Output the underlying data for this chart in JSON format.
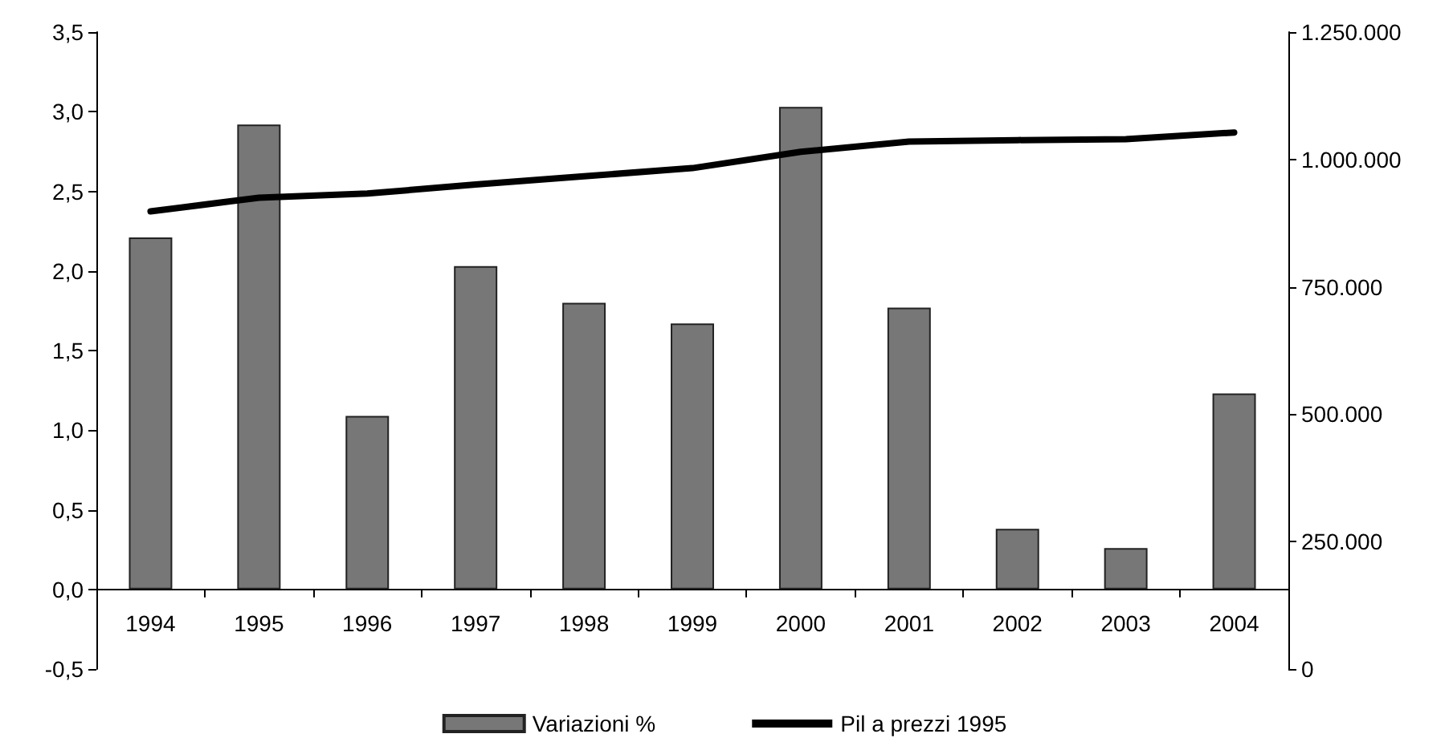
{
  "chart_data": {
    "type": "bar",
    "categories": [
      "1994",
      "1995",
      "1996",
      "1997",
      "1998",
      "1999",
      "2000",
      "2001",
      "2002",
      "2003",
      "2004"
    ],
    "series": [
      {
        "name": "Variazioni %",
        "color": "#777777",
        "values": [
          2.21,
          2.92,
          1.09,
          2.03,
          1.8,
          1.67,
          3.03,
          1.77,
          0.38,
          0.26,
          1.23
        ]
      },
      {
        "name": "Pil a prezzi 1995",
        "type": "line",
        "axis": "y2",
        "color": "#000000",
        "values": [
          898000,
          925000,
          933000,
          951000,
          967000,
          983000,
          1015000,
          1035000,
          1038000,
          1040000,
          1053000
        ]
      }
    ],
    "ylim": [
      -0.5,
      3.5
    ],
    "yticks": [
      {
        "value": -0.5,
        "label": "-0,5"
      },
      {
        "value": 0,
        "label": "0,0"
      },
      {
        "value": 0.5,
        "label": "0,5"
      },
      {
        "value": 1,
        "label": "1,0"
      },
      {
        "value": 1.5,
        "label": "1,5"
      },
      {
        "value": 2,
        "label": "2,0"
      },
      {
        "value": 2.5,
        "label": "2,5"
      },
      {
        "value": 3,
        "label": "3,0"
      },
      {
        "value": 3.5,
        "label": "3,5"
      }
    ],
    "y2lim": [
      0,
      1250000
    ],
    "y2ticks": [
      0,
      {
        "value": 250000,
        "label": "250.000"
      },
      {
        "value": 500000,
        "label": "500.000"
      },
      {
        "value": 750000,
        "label": "750.000"
      },
      {
        "value": 1000000,
        "label": "1.000.000"
      },
      {
        "value": 1250000,
        "label": "1.250.000"
      }
    ],
    "grid": false,
    "legend": "bottom",
    "marker": "none",
    "line_style": "solid"
  }
}
